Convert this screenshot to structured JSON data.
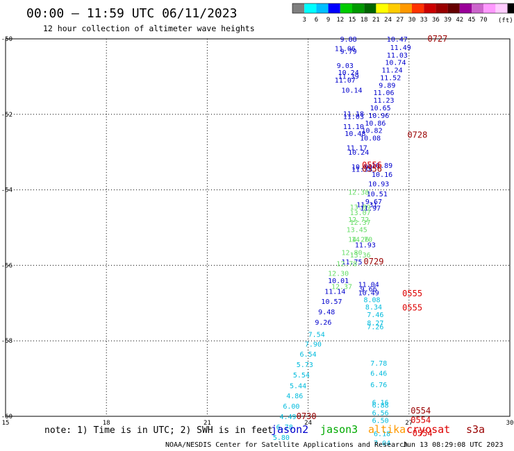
{
  "header": {
    "title": "00:00 – 11:59 UTC 06/11/2023",
    "subtitle": "12 hour collection of altimeter wave heights"
  },
  "colorbar": {
    "colors": [
      "#7f7f7f",
      "#00ffff",
      "#00bfff",
      "#0000ff",
      "#00cc00",
      "#009900",
      "#006600",
      "#ffff00",
      "#ffcc00",
      "#ff9900",
      "#ff3300",
      "#cc0000",
      "#990000",
      "#660000",
      "#990099",
      "#cc66cc",
      "#ff99ff",
      "#ffccff",
      "#000000"
    ],
    "labels": [
      "3",
      "6",
      "9",
      "12",
      "15",
      "18",
      "21",
      "24",
      "27",
      "30",
      "33",
      "36",
      "39",
      "42",
      "45",
      "70"
    ],
    "unit": "(ft)"
  },
  "footer": {
    "note": "note: 1) Time is in UTC; 2) SWH is in feet",
    "credit": "NOAA/NESDIS Center for Satellite Applications and Research",
    "timestamp": "Jun 13 08:29:08 UTC 2023",
    "legend": [
      {
        "name": "jason2",
        "color": "#0000cc"
      },
      {
        "name": "jason3",
        "color": "#00aa00"
      },
      {
        "name": "altika",
        "color": "#ff9900"
      },
      {
        "name": "cryosat",
        "color": "#dd0000"
      },
      {
        "name": "s3a",
        "color": "#990000"
      }
    ]
  },
  "chart_data": {
    "type": "scatter",
    "xlim": [
      15,
      30
    ],
    "ylim": [
      -60,
      -50
    ],
    "xticks": [
      15,
      18,
      21,
      24,
      27,
      30
    ],
    "yticks": [
      -50,
      -52,
      -54,
      -56,
      -58,
      -60
    ],
    "grid": true,
    "series": [
      {
        "name": "jason2",
        "color": "#0000cc",
        "points": [
          {
            "x": 25.2,
            "y": -50.0,
            "v": "9.88"
          },
          {
            "x": 25.1,
            "y": -50.25,
            "v": "11.06"
          },
          {
            "x": 25.2,
            "y": -50.32,
            "v": "9.79"
          },
          {
            "x": 25.1,
            "y": -50.7,
            "v": "9.03"
          },
          {
            "x": 25.2,
            "y": -50.88,
            "v": "10.24"
          },
          {
            "x": 25.2,
            "y": -50.98,
            "v": "11.39"
          },
          {
            "x": 25.1,
            "y": -51.08,
            "v": "11.07"
          },
          {
            "x": 25.3,
            "y": -51.35,
            "v": "10.14"
          },
          {
            "x": 25.35,
            "y": -51.98,
            "v": "11.18"
          },
          {
            "x": 25.35,
            "y": -52.05,
            "v": "11.03"
          },
          {
            "x": 25.35,
            "y": -52.32,
            "v": "11.10"
          },
          {
            "x": 25.4,
            "y": -52.5,
            "v": "10.48"
          },
          {
            "x": 25.45,
            "y": -52.88,
            "v": "11.17"
          },
          {
            "x": 25.5,
            "y": -53.0,
            "v": "10.24"
          },
          {
            "x": 25.6,
            "y": -53.38,
            "v": "10.99"
          },
          {
            "x": 25.6,
            "y": -53.45,
            "v": "11.38"
          },
          {
            "x": 26.2,
            "y": -53.35,
            "v": "10.89"
          },
          {
            "x": 26.2,
            "y": -53.58,
            "v": "10.16"
          },
          {
            "x": 26.1,
            "y": -53.83,
            "v": "10.93"
          },
          {
            "x": 26.05,
            "y": -54.1,
            "v": "10.51"
          },
          {
            "x": 25.95,
            "y": -54.3,
            "v": "9.67"
          },
          {
            "x": 25.75,
            "y": -54.38,
            "v": "11.31"
          },
          {
            "x": 25.85,
            "y": -54.48,
            "v": "11.97"
          },
          {
            "x": 25.7,
            "y": -55.45,
            "v": "11.93"
          },
          {
            "x": 25.3,
            "y": -55.9,
            "v": "11.75"
          },
          {
            "x": 26.65,
            "y": -50.0,
            "v": "10.47"
          },
          {
            "x": 26.75,
            "y": -50.22,
            "v": "11.49"
          },
          {
            "x": 26.65,
            "y": -50.42,
            "v": "11.03"
          },
          {
            "x": 26.6,
            "y": -50.62,
            "v": "10.74"
          },
          {
            "x": 26.5,
            "y": -50.82,
            "v": "11.24"
          },
          {
            "x": 26.45,
            "y": -51.02,
            "v": "11.52"
          },
          {
            "x": 26.35,
            "y": -51.22,
            "v": "9.89"
          },
          {
            "x": 26.25,
            "y": -51.42,
            "v": "11.06"
          },
          {
            "x": 26.25,
            "y": -51.62,
            "v": "11.23"
          },
          {
            "x": 26.15,
            "y": -51.82,
            "v": "10.65"
          },
          {
            "x": 26.1,
            "y": -52.02,
            "v": "10.96"
          },
          {
            "x": 26.0,
            "y": -52.22,
            "v": "10.86"
          },
          {
            "x": 25.9,
            "y": -52.42,
            "v": "10.82"
          },
          {
            "x": 25.85,
            "y": -52.62,
            "v": "10.08"
          },
          {
            "x": 24.9,
            "y": -56.4,
            "v": "10.01"
          },
          {
            "x": 24.8,
            "y": -56.68,
            "v": "11.14"
          },
          {
            "x": 24.7,
            "y": -56.95,
            "v": "10.57"
          },
          {
            "x": 24.55,
            "y": -57.22,
            "v": "9.48"
          },
          {
            "x": 24.45,
            "y": -57.5,
            "v": "9.26"
          },
          {
            "x": 25.8,
            "y": -56.5,
            "v": "11.04"
          },
          {
            "x": 25.8,
            "y": -56.62,
            "v": "9.66"
          },
          {
            "x": 25.8,
            "y": -56.72,
            "v": "10.49"
          }
        ]
      },
      {
        "name": "jason3",
        "color": "#66dd66",
        "points": [
          {
            "x": 25.5,
            "y": -54.05,
            "v": "12.38"
          },
          {
            "x": 25.55,
            "y": -54.45,
            "v": "13.89"
          },
          {
            "x": 25.55,
            "y": -54.6,
            "v": "13.07"
          },
          {
            "x": 25.5,
            "y": -54.78,
            "v": "12.72"
          },
          {
            "x": 25.55,
            "y": -54.85,
            "v": "12.37"
          },
          {
            "x": 25.45,
            "y": -55.05,
            "v": "13.45"
          },
          {
            "x": 25.5,
            "y": -55.3,
            "v": "14.26"
          },
          {
            "x": 25.6,
            "y": -55.3,
            "v": "14.70"
          },
          {
            "x": 25.3,
            "y": -55.65,
            "v": "12.80"
          },
          {
            "x": 25.55,
            "y": -55.72,
            "v": "13.36"
          },
          {
            "x": 25.15,
            "y": -55.95,
            "v": "12.78"
          },
          {
            "x": 24.9,
            "y": -56.2,
            "v": "12.30"
          },
          {
            "x": 25.0,
            "y": -56.55,
            "v": "12.37"
          }
        ]
      },
      {
        "name": "cyan",
        "color": "#00bbdd",
        "points": [
          {
            "x": 24.25,
            "y": -57.82,
            "v": "7.54"
          },
          {
            "x": 24.15,
            "y": -58.08,
            "v": "7.90"
          },
          {
            "x": 24.0,
            "y": -58.35,
            "v": "6.54"
          },
          {
            "x": 23.9,
            "y": -58.62,
            "v": "5.73"
          },
          {
            "x": 23.8,
            "y": -58.9,
            "v": "5.54"
          },
          {
            "x": 23.7,
            "y": -59.18,
            "v": "5.44"
          },
          {
            "x": 23.6,
            "y": -59.45,
            "v": "4.86"
          },
          {
            "x": 23.5,
            "y": -59.72,
            "v": "6.00"
          },
          {
            "x": 23.4,
            "y": -60.0,
            "v": "4.49"
          },
          {
            "x": 23.3,
            "y": -60.28,
            "v": "6.78"
          },
          {
            "x": 23.2,
            "y": -60.55,
            "v": "5.80"
          },
          {
            "x": 25.9,
            "y": -56.9,
            "v": "8.08"
          },
          {
            "x": 25.95,
            "y": -57.1,
            "v": "8.34"
          },
          {
            "x": 26.0,
            "y": -57.3,
            "v": "7.46"
          },
          {
            "x": 26.0,
            "y": -57.52,
            "v": "8.27"
          },
          {
            "x": 26.0,
            "y": -57.62,
            "v": "7.26"
          },
          {
            "x": 26.1,
            "y": -58.58,
            "v": "7.78"
          },
          {
            "x": 26.1,
            "y": -58.85,
            "v": "6.46"
          },
          {
            "x": 26.1,
            "y": -59.15,
            "v": "6.76"
          },
          {
            "x": 26.15,
            "y": -59.62,
            "v": "6.16"
          },
          {
            "x": 26.15,
            "y": -59.7,
            "v": "6.88"
          },
          {
            "x": 26.15,
            "y": -59.9,
            "v": "6.56"
          },
          {
            "x": 26.15,
            "y": -60.1,
            "v": "6.50"
          },
          {
            "x": 26.2,
            "y": -60.45,
            "v": "6.18"
          },
          {
            "x": 26.2,
            "y": -60.7,
            "v": "7.04"
          }
        ]
      }
    ],
    "time_labels": [
      {
        "text": "0727",
        "x": 27.85,
        "y": -50.0,
        "color": "#990000"
      },
      {
        "text": "0728",
        "x": 27.25,
        "y": -52.55,
        "color": "#990000"
      },
      {
        "text": "0556",
        "x": 25.9,
        "y": -53.35,
        "color": "#dd0000"
      },
      {
        "text": "0556",
        "x": 25.9,
        "y": -53.45,
        "color": "#990000"
      },
      {
        "text": "0729",
        "x": 25.95,
        "y": -55.9,
        "color": "#990000"
      },
      {
        "text": "0555",
        "x": 27.1,
        "y": -56.75,
        "color": "#dd0000"
      },
      {
        "text": "0555",
        "x": 27.1,
        "y": -57.12,
        "color": "#dd0000"
      },
      {
        "text": "0730",
        "x": 23.95,
        "y": -60.0,
        "color": "#990000"
      },
      {
        "text": "0554",
        "x": 27.35,
        "y": -59.85,
        "color": "#990000"
      },
      {
        "text": "0554",
        "x": 27.35,
        "y": -60.1,
        "color": "#dd0000"
      },
      {
        "text": "0554",
        "x": 27.4,
        "y": -60.45,
        "color": "#dd0000"
      }
    ]
  }
}
